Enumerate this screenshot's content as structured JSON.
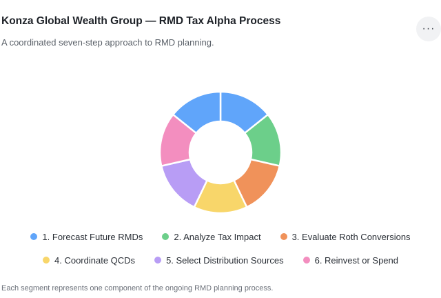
{
  "header": {
    "title": "Konza Global Wealth Group — RMD Tax Alpha Process",
    "subtitle": "A coordinated seven-step approach to RMD planning.",
    "more_label": "···"
  },
  "chart_data": {
    "type": "pie",
    "donut": true,
    "title": "Konza Global Wealth Group — RMD Tax Alpha Process",
    "subtitle": "A coordinated seven-step approach to RMD planning.",
    "categories": [
      "1. Forecast Future RMDs",
      "2. Analyze Tax Impact",
      "3. Evaluate Roth Conversions",
      "4. Coordinate QCDs",
      "5. Select Distribution Sources",
      "6. Reinvest or Spend",
      ""
    ],
    "values": [
      1,
      1,
      1,
      1,
      1,
      1,
      1
    ],
    "colors": [
      "#60a5fa",
      "#6ccf8a",
      "#f0925a",
      "#f8d66a",
      "#b89df5",
      "#f38ebf",
      "#60a5fa"
    ],
    "legend": "bottom",
    "footnote": "Each segment represents one component of the ongoing RMD planning process."
  },
  "legend_rows": [
    [
      {
        "label": "1. Forecast Future RMDs",
        "color": "#60a5fa"
      },
      {
        "label": "2. Analyze Tax Impact",
        "color": "#6ccf8a"
      },
      {
        "label": "3. Evaluate Roth Conversions",
        "color": "#f0925a"
      }
    ],
    [
      {
        "label": "4. Coordinate QCDs",
        "color": "#f8d66a"
      },
      {
        "label": "5. Select Distribution Sources",
        "color": "#b89df5"
      },
      {
        "label": "6. Reinvest or Spend",
        "color": "#f38ebf"
      }
    ]
  ],
  "footer": {
    "note": "Each segment represents one component of the ongoing RMD planning process."
  }
}
